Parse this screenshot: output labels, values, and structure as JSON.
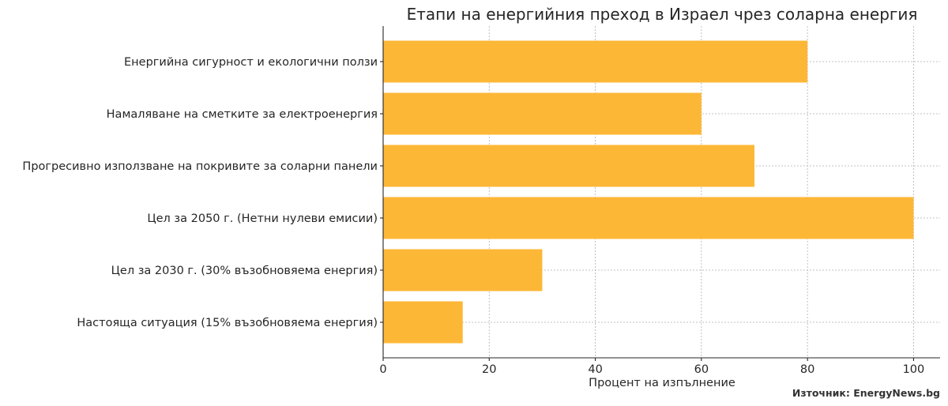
{
  "chart_data": {
    "type": "bar",
    "orientation": "horizontal",
    "title": "Етапи на енергийния преход в Израел чрез соларна енергия",
    "xlabel": "Процент на изпълнение",
    "ylabel": "",
    "categories": [
      "Настояща ситуация (15% възобновяема енергия)",
      "Цел за 2030 г. (30% възобновяема енергия)",
      "Цел за 2050 г. (Нетни нулеви емисии)",
      "Прогресивно използване на покривите за соларни панели",
      "Намаляване на сметките за електроенергия",
      "Енергийна сигурност и екологични ползи"
    ],
    "values": [
      15,
      30,
      100,
      70,
      60,
      80
    ],
    "xlim": [
      0,
      105
    ],
    "xticks": [
      0,
      20,
      40,
      60,
      80,
      100
    ],
    "grid": true,
    "bar_color": "#FDB737"
  },
  "source_note": "Източник: EnergyNews.bg"
}
